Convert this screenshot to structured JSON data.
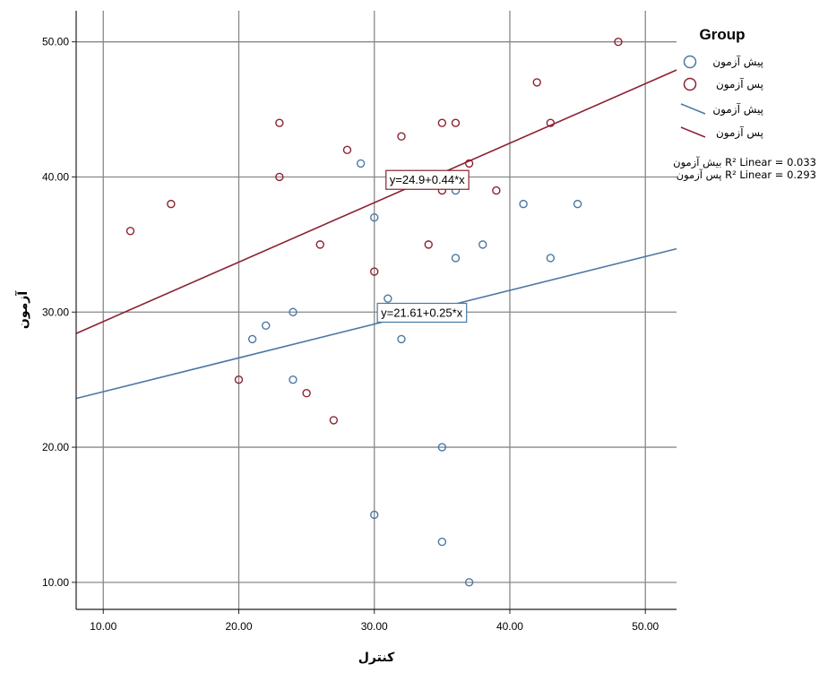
{
  "chart_data": {
    "type": "scatter",
    "xlabel": "کنترل",
    "ylabel": "آزمون",
    "xlim": [
      8,
      52.3
    ],
    "ylim": [
      8,
      52.3
    ],
    "xticks": [
      10,
      20,
      30,
      40,
      50
    ],
    "yticks": [
      10,
      20,
      30,
      40,
      50
    ],
    "tick_format_decimals": 2,
    "grid": true,
    "legend": {
      "title": "Group",
      "placement": "right",
      "r2_lines": [
        "بیش آزمون R² Linear = 0.033",
        "پس آزمون R² Linear = 0.293"
      ]
    },
    "series": [
      {
        "name": "پیش آزمون",
        "color": "#4a78a4",
        "points": [
          [
            21,
            28
          ],
          [
            22,
            29
          ],
          [
            24,
            30
          ],
          [
            24,
            25
          ],
          [
            29,
            41
          ],
          [
            30,
            37
          ],
          [
            30,
            15
          ],
          [
            31,
            31
          ],
          [
            32,
            28
          ],
          [
            33,
            30
          ],
          [
            35,
            40
          ],
          [
            35,
            20
          ],
          [
            35,
            13
          ],
          [
            36,
            39
          ],
          [
            36,
            34
          ],
          [
            37,
            10
          ],
          [
            38,
            35
          ],
          [
            41,
            38
          ],
          [
            43,
            34
          ],
          [
            45,
            38
          ]
        ],
        "fit": {
          "intercept": 21.61,
          "slope": 0.25,
          "equation": "y=21.61+0.25*x",
          "label_at_x": 33.5
        }
      },
      {
        "name": "پس آزمون",
        "color": "#8b2232",
        "points": [
          [
            12,
            36
          ],
          [
            15,
            38
          ],
          [
            20,
            25
          ],
          [
            23,
            44
          ],
          [
            23,
            40
          ],
          [
            25,
            24
          ],
          [
            26,
            35
          ],
          [
            27,
            22
          ],
          [
            28,
            42
          ],
          [
            30,
            33
          ],
          [
            32,
            43
          ],
          [
            34,
            35
          ],
          [
            35,
            44
          ],
          [
            35,
            39
          ],
          [
            36,
            44
          ],
          [
            37,
            41
          ],
          [
            39,
            39
          ],
          [
            42,
            47
          ],
          [
            43,
            44
          ],
          [
            48,
            50
          ]
        ],
        "fit": {
          "intercept": 24.9,
          "slope": 0.44,
          "equation": "y=24.9+0.44*x",
          "label_at_x": 33.9
        }
      }
    ]
  }
}
